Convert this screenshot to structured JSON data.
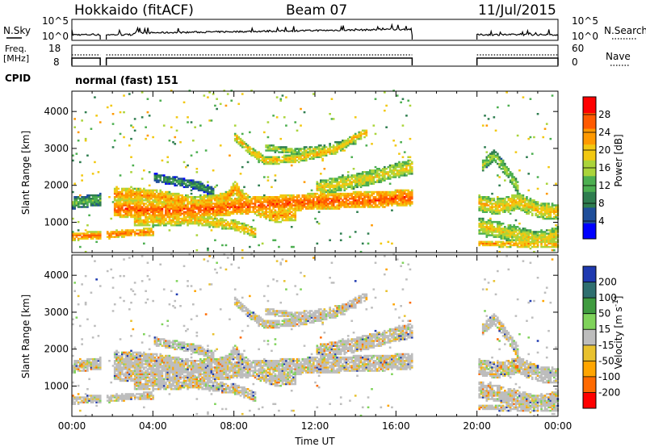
{
  "header": {
    "station": "Hokkaido (fitACF)",
    "beam": "Beam 07",
    "date": "11/Jul/2015"
  },
  "noise_panel": {
    "left_label": "N.Sky",
    "right_label": "N.Search",
    "left_ticks": [
      "10^5",
      "10^0"
    ],
    "right_ticks": [
      "10^5",
      "10^0"
    ]
  },
  "freq_panel": {
    "left_label_1": "Freq.",
    "left_label_2": "[MHz]",
    "right_label": "Nave",
    "left_ticks": [
      "18",
      "8"
    ],
    "right_ticks": [
      "60",
      "0"
    ]
  },
  "cpid": {
    "label": "CPID",
    "value": "normal (fast) 151"
  },
  "colors": {
    "power_scale": [
      "#0000ff",
      "#1f4e9a",
      "#2e7d4f",
      "#4caf50",
      "#aad43a",
      "#f2c811",
      "#ff9900",
      "#ff5a00",
      "#ff0000"
    ],
    "velocity_scale": [
      "#ff0000",
      "#ff6a00",
      "#ffa500",
      "#e8c12e",
      "#bdbdbd",
      "#7fd35a",
      "#3f9b3f",
      "#2f6f6f",
      "#1f3ab0"
    ],
    "ground_scatter": "#bdbdbd"
  },
  "chart_data": [
    {
      "type": "heatmap",
      "title": "",
      "xlabel": "",
      "ylabel": "Slant Range [km]",
      "xlim_hours": [
        0,
        24
      ],
      "ylim_km": [
        180,
        4550
      ],
      "yticks": [
        "1000",
        "2000",
        "3000",
        "4000"
      ],
      "colorbar": {
        "label": "Power [dB]",
        "ticks": [
          "28",
          "24",
          "20",
          "16",
          "12",
          "8",
          "4"
        ],
        "range": [
          0,
          32
        ]
      },
      "data_gaps_hours": [
        [
          1.4,
          1.7
        ],
        [
          16.8,
          20.0
        ]
      ]
    },
    {
      "type": "heatmap",
      "title": "",
      "xlabel": "Time UT",
      "ylabel": "Slant Range [km]",
      "xlim_hours": [
        0,
        24
      ],
      "ylim_km": [
        180,
        4550
      ],
      "xticks": [
        "00:00",
        "04:00",
        "08:00",
        "12:00",
        "16:00",
        "20:00",
        "00:00"
      ],
      "yticks": [
        "1000",
        "2000",
        "3000",
        "4000"
      ],
      "colorbar": {
        "label": "Velocity [m s",
        "label_sup": "-1",
        "label_end": "]",
        "ticks": [
          "200",
          "100",
          "50",
          "15",
          "-15",
          "-50",
          "-100",
          "-200"
        ]
      },
      "data_gaps_hours": [
        [
          1.4,
          1.7
        ],
        [
          16.8,
          20.0
        ]
      ]
    }
  ]
}
